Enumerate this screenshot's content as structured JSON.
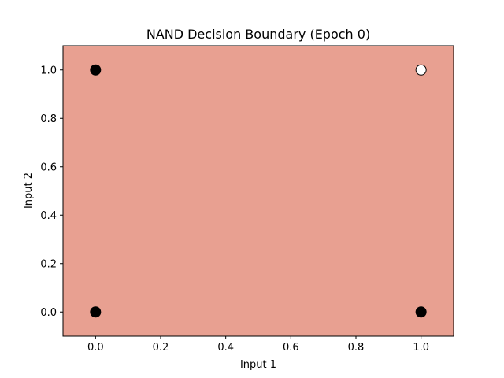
{
  "chart_data": {
    "type": "scatter",
    "title": "NAND Decision Boundary (Epoch 0)",
    "xlabel": "Input 1",
    "ylabel": "Input 2",
    "xlim": [
      -0.1,
      1.1
    ],
    "ylim": [
      -0.1,
      1.1
    ],
    "x_ticks": [
      0.0,
      0.2,
      0.4,
      0.6,
      0.8,
      1.0
    ],
    "y_ticks": [
      0.0,
      0.2,
      0.4,
      0.6,
      0.8,
      1.0
    ],
    "x_tick_labels": [
      "0.0",
      "0.2",
      "0.4",
      "0.6",
      "0.8",
      "1.0"
    ],
    "y_tick_labels": [
      "0.0",
      "0.2",
      "0.4",
      "0.6",
      "0.8",
      "1.0"
    ],
    "grid": false,
    "legend": "none",
    "region_color": "#e8a091",
    "points": [
      {
        "x": 0,
        "y": 0,
        "fill": "#000000"
      },
      {
        "x": 0,
        "y": 1,
        "fill": "#000000"
      },
      {
        "x": 1,
        "y": 0,
        "fill": "#000000"
      },
      {
        "x": 1,
        "y": 1,
        "fill": "#ffffff"
      }
    ]
  }
}
